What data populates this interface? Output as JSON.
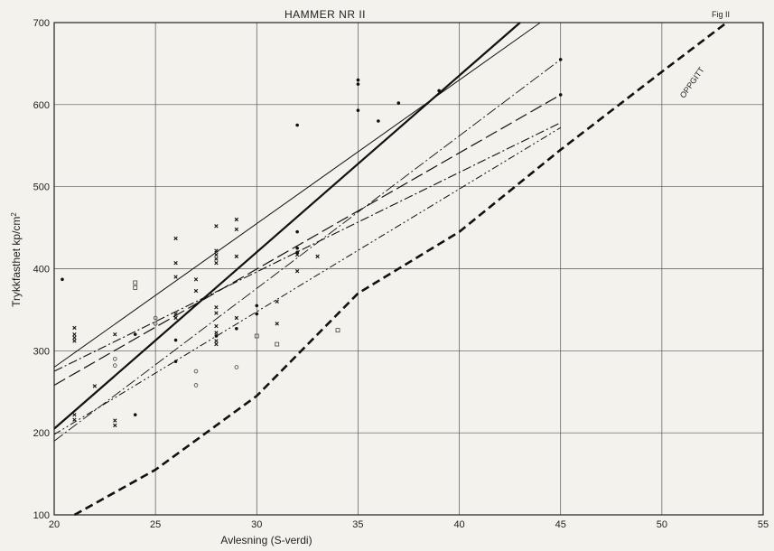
{
  "chart_data": {
    "type": "line",
    "title": "HAMMER NR II",
    "fig_label": "Fig II",
    "xlabel": "Avlesning (S-verdi)",
    "ylabel_main": "Trykkfasthet  kp/cm",
    "ylabel_sup": "2",
    "xlim": [
      20,
      55
    ],
    "ylim": [
      100,
      700
    ],
    "xticks": [
      20,
      25,
      30,
      35,
      40,
      45,
      50,
      55
    ],
    "yticks": [
      100,
      200,
      300,
      400,
      500,
      600,
      700
    ],
    "grid": true,
    "series": [
      {
        "name": "OPPGITT",
        "style": "dashed-bold",
        "points": [
          [
            21,
            100
          ],
          [
            25,
            155
          ],
          [
            30,
            245
          ],
          [
            35,
            370
          ],
          [
            40,
            445
          ],
          [
            45,
            545
          ],
          [
            50,
            640
          ],
          [
            53.2,
            700
          ]
        ]
      },
      {
        "style": "solid-bold",
        "points": [
          [
            20,
            205
          ],
          [
            43,
            700
          ]
        ]
      },
      {
        "style": "solid-thin",
        "points": [
          [
            20,
            280
          ],
          [
            44,
            700
          ]
        ]
      },
      {
        "style": "dash-long",
        "points": [
          [
            20,
            258
          ],
          [
            45,
            612
          ]
        ]
      },
      {
        "style": "dash-dot",
        "points": [
          [
            20,
            275
          ],
          [
            45,
            578
          ]
        ]
      },
      {
        "style": "dash-dot-thin",
        "points": [
          [
            20,
            190
          ],
          [
            45,
            655
          ]
        ]
      },
      {
        "style": "dash-dot-dot",
        "points": [
          [
            20,
            198
          ],
          [
            45,
            572
          ]
        ]
      }
    ],
    "annotations": [
      {
        "text": "OPPGITT",
        "x": 51.6,
        "y": 625,
        "angle": -55
      }
    ],
    "scatter": [
      {
        "marker": "filled-dot",
        "points": [
          [
            20.4,
            387
          ],
          [
            24,
            320
          ],
          [
            24,
            222
          ],
          [
            26,
            313
          ],
          [
            26,
            287
          ],
          [
            28,
            318
          ],
          [
            29,
            327
          ],
          [
            30,
            345
          ],
          [
            30,
            355
          ],
          [
            32,
            445
          ],
          [
            32,
            425
          ],
          [
            32,
            420
          ],
          [
            32,
            575
          ],
          [
            35,
            630
          ],
          [
            35,
            625
          ],
          [
            35,
            593
          ],
          [
            36,
            580
          ],
          [
            37,
            602
          ],
          [
            39,
            617
          ],
          [
            45,
            655
          ],
          [
            45,
            612
          ]
        ]
      },
      {
        "marker": "cross",
        "points": [
          [
            21,
            328
          ],
          [
            21,
            320
          ],
          [
            21,
            316
          ],
          [
            21,
            312
          ],
          [
            21,
            222
          ],
          [
            21,
            216
          ],
          [
            22,
            257
          ],
          [
            23,
            320
          ],
          [
            23,
            215
          ],
          [
            23,
            209
          ],
          [
            26,
            437
          ],
          [
            26,
            407
          ],
          [
            26,
            390
          ],
          [
            26,
            345
          ],
          [
            26,
            340
          ],
          [
            27,
            387
          ],
          [
            27,
            373
          ],
          [
            28,
            452
          ],
          [
            28,
            422
          ],
          [
            28,
            417
          ],
          [
            28,
            412
          ],
          [
            28,
            407
          ],
          [
            28,
            353
          ],
          [
            28,
            346
          ],
          [
            28,
            330
          ],
          [
            28,
            322
          ],
          [
            28,
            312
          ],
          [
            28,
            308
          ],
          [
            29,
            460
          ],
          [
            29,
            448
          ],
          [
            29,
            415
          ],
          [
            29,
            340
          ],
          [
            31,
            360
          ],
          [
            31,
            333
          ],
          [
            32,
            417
          ],
          [
            32,
            397
          ],
          [
            33,
            415
          ]
        ]
      },
      {
        "marker": "open-circle",
        "points": [
          [
            23,
            290
          ],
          [
            23,
            282
          ],
          [
            25,
            340
          ],
          [
            25,
            333
          ],
          [
            27,
            275
          ],
          [
            27,
            258
          ],
          [
            29,
            280
          ]
        ]
      },
      {
        "marker": "open-square",
        "points": [
          [
            24,
            383
          ],
          [
            24,
            377
          ],
          [
            30,
            318
          ],
          [
            31,
            308
          ],
          [
            34,
            325
          ]
        ]
      }
    ]
  }
}
